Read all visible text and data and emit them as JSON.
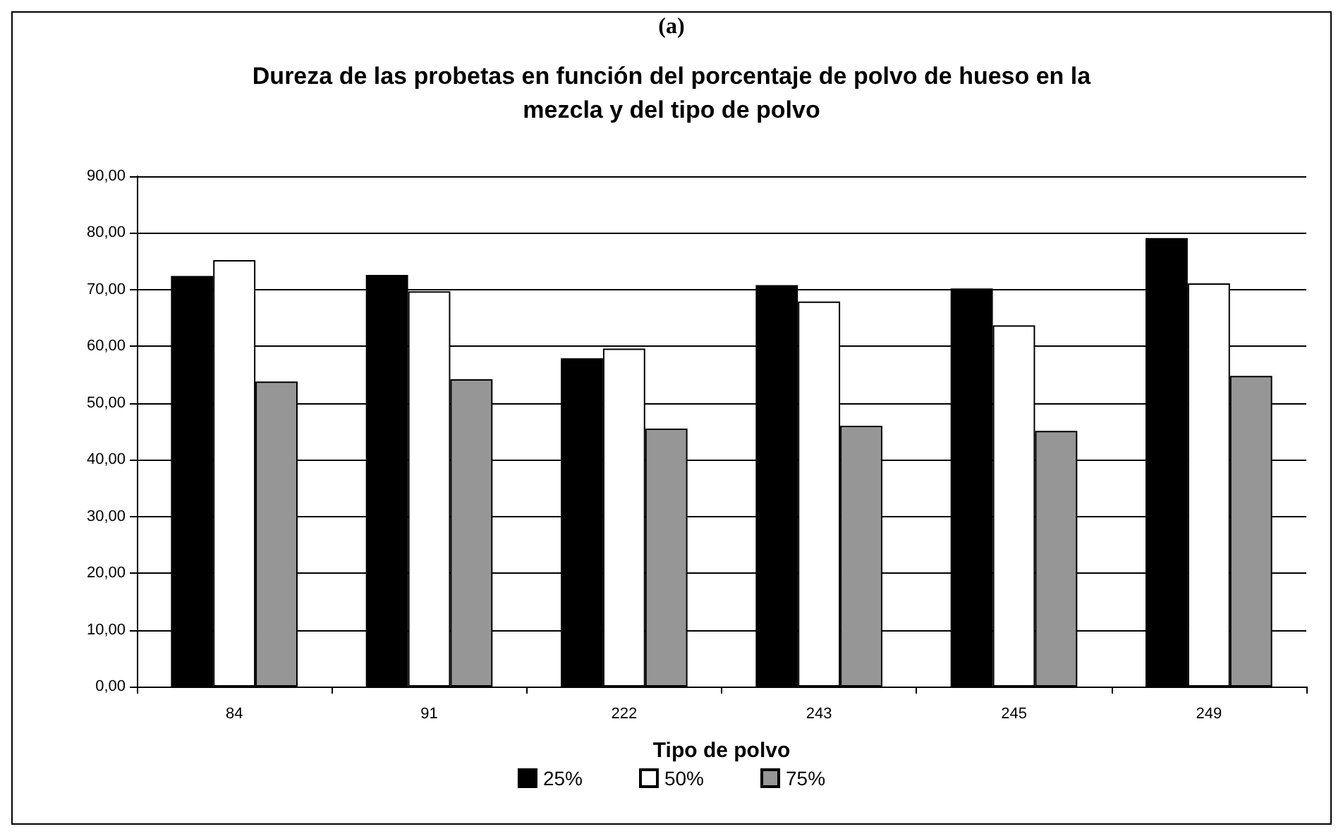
{
  "chart_data": {
    "type": "bar",
    "title": "Dureza de las probetas en función del porcentaje de polvo de hueso en la\nmezcla y del tipo de polvo",
    "xlabel": "Tipo de polvo",
    "annotations": [
      "(a)"
    ],
    "categories": [
      "84",
      "91",
      "222",
      "243",
      "245",
      "249"
    ],
    "series": [
      {
        "name": "25%",
        "color": "#000000",
        "values": [
          72.4,
          72.6,
          57.9,
          70.8,
          70.2,
          79.1
        ]
      },
      {
        "name": "50%",
        "color": "#ffffff",
        "values": [
          75.2,
          69.7,
          59.6,
          67.9,
          63.7,
          71.1
        ]
      },
      {
        "name": "75%",
        "color": "#969696",
        "values": [
          53.8,
          54.2,
          45.5,
          46.0,
          45.1,
          54.8
        ]
      }
    ],
    "ylim": [
      0,
      90
    ],
    "yticks": [
      {
        "value": 0,
        "label": "0,00"
      },
      {
        "value": 10,
        "label": "10,00"
      },
      {
        "value": 20,
        "label": "20,00"
      },
      {
        "value": 30,
        "label": "30,00"
      },
      {
        "value": 40,
        "label": "40,00"
      },
      {
        "value": 50,
        "label": "50,00"
      },
      {
        "value": 60,
        "label": "60,00"
      },
      {
        "value": 70,
        "label": "70,00"
      },
      {
        "value": 80,
        "label": "80,00"
      },
      {
        "value": 90,
        "label": "90,00"
      }
    ],
    "grid": "y",
    "legend": "bottom"
  }
}
